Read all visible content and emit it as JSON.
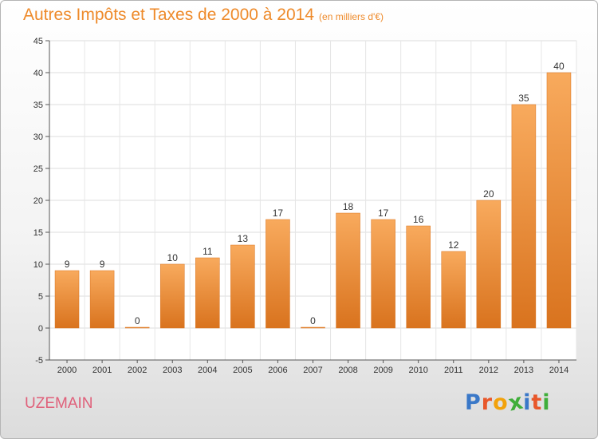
{
  "title": "Autres Impôts et Taxes de 2000 à 2014",
  "unit": "(en milliers d'€)",
  "city": "UZEMAIN",
  "logo": [
    "P",
    "r",
    "o",
    "x",
    "i",
    "t",
    "i"
  ],
  "colors": {
    "title": "#ee8a2a",
    "bar_light": "#f8aa5d",
    "bar_dark": "#d9731e",
    "city": "#e0607a",
    "logo": [
      "#3a78c8",
      "#e8572a",
      "#f2a20c",
      "#3fae3a",
      "#3a78c8",
      "#e8572a",
      "#3fae3a"
    ]
  },
  "chart_data": {
    "type": "bar",
    "categories": [
      "2000",
      "2001",
      "2002",
      "2003",
      "2004",
      "2005",
      "2006",
      "2007",
      "2008",
      "2009",
      "2010",
      "2011",
      "2012",
      "2013",
      "2014"
    ],
    "values": [
      9,
      9,
      0,
      10,
      11,
      13,
      17,
      0,
      18,
      17,
      16,
      12,
      20,
      35,
      40
    ],
    "ylim": [
      -5,
      45
    ],
    "yticks": [
      -5,
      0,
      5,
      10,
      15,
      20,
      25,
      30,
      35,
      40,
      45
    ],
    "grid": true
  }
}
